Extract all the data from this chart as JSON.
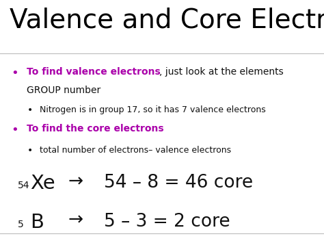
{
  "title": "Valence and Core Electrons",
  "background_color": "#ffffff",
  "title_color": "#000000",
  "title_fontsize": 28,
  "purple_color": "#aa00aa",
  "black_color": "#111111",
  "bullet1_bold": "To find valence electrons",
  "bullet1_rest": ", just look at the elements",
  "bullet1_rest2": "GROUP number",
  "bullet1_sub": "Nitrogen is in group 17, so it has 7 valence electrons",
  "bullet2_bold": "To find the core electrons",
  "bullet2_sub": "total number of electrons– valence electrons",
  "line1_sub54": "54",
  "line1_element": "Xe",
  "line1_eq": "54 – 8 = 46 core",
  "line2_sub5": "5",
  "line2_element": "B",
  "line2_eq": "5 – 3 = 2 core"
}
